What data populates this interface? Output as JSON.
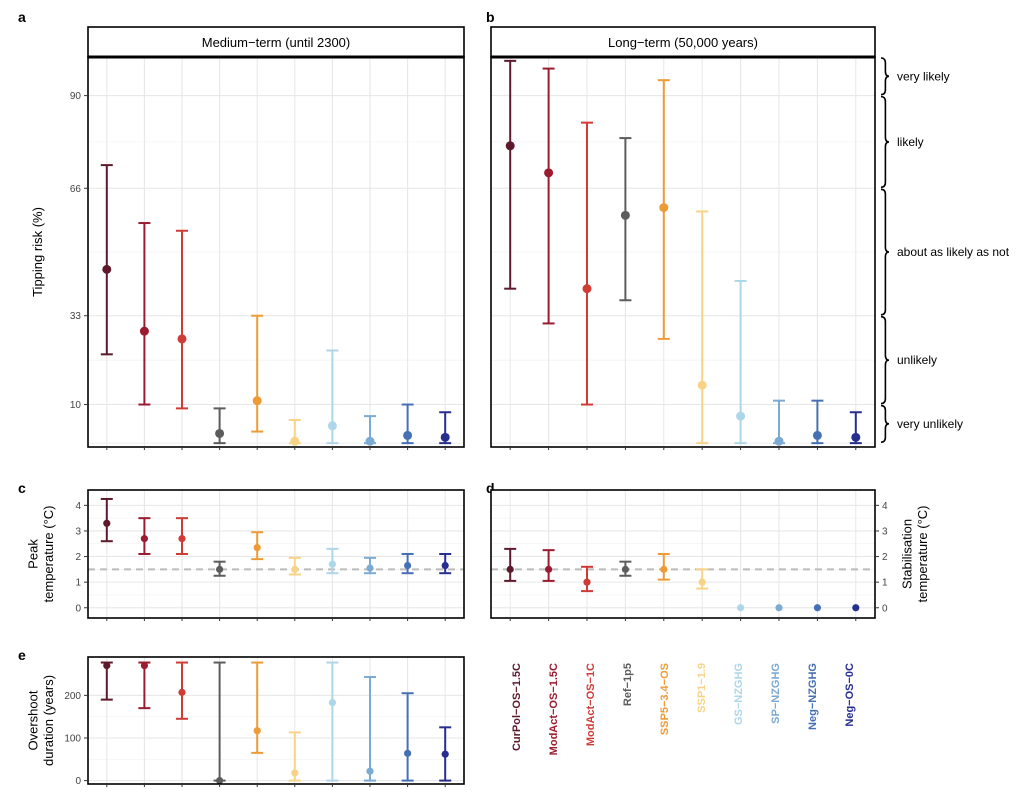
{
  "scenarios": [
    {
      "name": "CurPol−OS−1.5C",
      "color": "#5E1A2C"
    },
    {
      "name": "ModAct−OS−1.5C",
      "color": "#9B1B30"
    },
    {
      "name": "ModAct−OS−1C",
      "color": "#D13B36"
    },
    {
      "name": "Ref−1p5",
      "color": "#5C5C5C"
    },
    {
      "name": "SSP5−3.4−OS",
      "color": "#EE9B36"
    },
    {
      "name": "SSP1−1.9",
      "color": "#F8D387"
    },
    {
      "name": "GS−NZGHG",
      "color": "#AED6EA"
    },
    {
      "name": "SP−NZGHG",
      "color": "#7BAAD3"
    },
    {
      "name": "Neg−NZGHG",
      "color": "#4670B4"
    },
    {
      "name": "Neg−OS−0C",
      "color": "#262E8F"
    }
  ],
  "reference_line": {
    "value": 1.5,
    "color": "#BBBBBB"
  },
  "likelihood_bands": [
    {
      "label": "very likely",
      "from": 90,
      "to": 100
    },
    {
      "label": "likely",
      "from": 66,
      "to": 90
    },
    {
      "label": "about as likely as not",
      "from": 33,
      "to": 66
    },
    {
      "label": "unlikely",
      "from": 10,
      "to": 33
    },
    {
      "label": "very unlikely",
      "from": 0,
      "to": 10
    }
  ],
  "chart_data": [
    {
      "id": "a",
      "panel_label": "a",
      "type": "errorbar",
      "title": "Medium−term (until 2300)",
      "ylabel": "Tipping risk (%)",
      "yticks": [
        10,
        33,
        66,
        90
      ],
      "ylim": [
        -1,
        100
      ],
      "grid": true,
      "categories": [
        "CurPol−OS−1.5C",
        "ModAct−OS−1.5C",
        "ModAct−OS−1C",
        "Ref−1p5",
        "SSP5−3.4−OS",
        "SSP1−1.9",
        "GS−NZGHG",
        "SP−NZGHG",
        "Neg−NZGHG",
        "Neg−OS−0C"
      ],
      "median": [
        45,
        29,
        27,
        2.5,
        11,
        0.5,
        4.5,
        0.5,
        2,
        1.5
      ],
      "low": [
        23,
        10,
        9,
        0,
        3,
        0,
        0,
        0,
        0,
        0
      ],
      "high": [
        72,
        57,
        55,
        9,
        33,
        6,
        24,
        7,
        10,
        8
      ]
    },
    {
      "id": "b",
      "panel_label": "b",
      "type": "errorbar",
      "title": "Long−term (50,000 years)",
      "ylabel": "",
      "yticks": [
        10,
        33,
        66,
        90
      ],
      "ylim": [
        -1,
        100
      ],
      "grid": true,
      "categories": [
        "CurPol−OS−1.5C",
        "ModAct−OS−1.5C",
        "ModAct−OS−1C",
        "Ref−1p5",
        "SSP5−3.4−OS",
        "SSP1−1.9",
        "GS−NZGHG",
        "SP−NZGHG",
        "Neg−NZGHG",
        "Neg−OS−0C"
      ],
      "median": [
        77,
        70,
        40,
        59,
        61,
        15,
        7,
        0.5,
        2,
        1.5
      ],
      "low": [
        40,
        31,
        10,
        37,
        27,
        0,
        0,
        0,
        0,
        0
      ],
      "high": [
        99,
        97,
        83,
        79,
        94,
        60,
        42,
        11,
        11,
        8
      ]
    },
    {
      "id": "c",
      "panel_label": "c",
      "type": "errorbar",
      "title": "",
      "ylabel": "Peak temperature (°C)",
      "yticks": [
        0,
        1,
        2,
        3,
        4
      ],
      "ylim": [
        -0.4,
        4.6
      ],
      "grid": true,
      "categories": [
        "CurPol−OS−1.5C",
        "ModAct−OS−1.5C",
        "ModAct−OS−1C",
        "Ref−1p5",
        "SSP5−3.4−OS",
        "SSP1−1.9",
        "GS−NZGHG",
        "SP−NZGHG",
        "Neg−NZGHG",
        "Neg−OS−0C"
      ],
      "median": [
        3.3,
        2.7,
        2.7,
        1.5,
        2.35,
        1.5,
        1.7,
        1.55,
        1.65,
        1.65
      ],
      "low": [
        2.6,
        2.1,
        2.1,
        1.25,
        1.9,
        1.3,
        1.35,
        1.35,
        1.35,
        1.35
      ],
      "high": [
        4.25,
        3.5,
        3.5,
        1.8,
        2.95,
        1.95,
        2.3,
        1.95,
        2.1,
        2.1
      ]
    },
    {
      "id": "d",
      "panel_label": "d",
      "type": "errorbar",
      "title": "",
      "ylabel": "Stabilisation temperature (°C)",
      "yticks": [
        0,
        1,
        2,
        3,
        4
      ],
      "ylim": [
        -0.4,
        4.6
      ],
      "grid": true,
      "categories": [
        "CurPol−OS−1.5C",
        "ModAct−OS−1.5C",
        "ModAct−OS−1C",
        "Ref−1p5",
        "SSP5−3.4−OS",
        "SSP1−1.9",
        "GS−NZGHG",
        "SP−NZGHG",
        "Neg−NZGHG",
        "Neg−OS−0C"
      ],
      "median": [
        1.5,
        1.5,
        1.0,
        1.5,
        1.5,
        1.0,
        0,
        0,
        0,
        0
      ],
      "low": [
        1.05,
        1.05,
        0.65,
        1.25,
        1.1,
        0.75,
        0,
        0,
        0,
        0
      ],
      "high": [
        2.3,
        2.25,
        1.6,
        1.8,
        2.1,
        1.5,
        0,
        0,
        0,
        0
      ]
    },
    {
      "id": "e",
      "panel_label": "e",
      "type": "errorbar",
      "title": "",
      "ylabel": "Overshoot duration (years)",
      "yticks": [
        0,
        100,
        200
      ],
      "ylim": [
        -8,
        290
      ],
      "grid": true,
      "categories": [
        "CurPol−OS−1.5C",
        "ModAct−OS−1.5C",
        "ModAct−OS−1C",
        "Ref−1p5",
        "SSP5−3.4−OS",
        "SSP1−1.9",
        "GS−NZGHG",
        "SP−NZGHG",
        "Neg−NZGHG",
        "Neg−OS−0C"
      ],
      "median": [
        270,
        270,
        207,
        0,
        117,
        18,
        183,
        22,
        64,
        62
      ],
      "low": [
        190,
        170,
        145,
        0,
        65,
        0,
        0,
        0,
        0,
        0
      ],
      "high": [
        277,
        277,
        277,
        277,
        277,
        113,
        277,
        243,
        205,
        125
      ]
    }
  ]
}
